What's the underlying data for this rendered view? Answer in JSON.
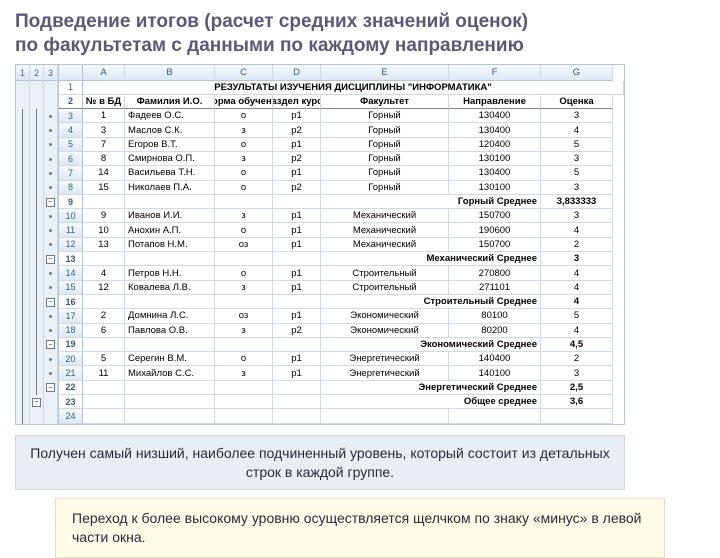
{
  "title_line1": "Подведение итогов (расчет средних значений оценок)",
  "title_line2": "по факультетам с данными по каждому направлению",
  "outline_levels": [
    "1",
    "2",
    "3"
  ],
  "col_letters": [
    "",
    "A",
    "B",
    "C",
    "D",
    "E",
    "F",
    "G"
  ],
  "table_title": "РЕЗУЛЬТАТЫ ИЗУЧЕНИЯ ДИСЦИПЛИНЫ \"ИНФОРМАТИКА\"",
  "headers": {
    "a": "№ в БД",
    "b": "Фамилия И.О.",
    "c": "Форма обучения",
    "d": "Раздел курса",
    "e": "Факультет",
    "f": "Направление",
    "g": "Оценка"
  },
  "rows": [
    {
      "n": "3",
      "a": "1",
      "b": "Фадеев О.С.",
      "c": "о",
      "d": "р1",
      "e": "Горный",
      "f": "130400",
      "g": "3"
    },
    {
      "n": "4",
      "a": "3",
      "b": "Маслов С.К.",
      "c": "з",
      "d": "р2",
      "e": "Горный",
      "f": "130400",
      "g": "4"
    },
    {
      "n": "5",
      "a": "7",
      "b": "Егоров В.Т.",
      "c": "о",
      "d": "р1",
      "e": "Горный",
      "f": "120400",
      "g": "5"
    },
    {
      "n": "6",
      "a": "8",
      "b": "Смирнова О.П.",
      "c": "з",
      "d": "р2",
      "e": "Горный",
      "f": "130100",
      "g": "3"
    },
    {
      "n": "7",
      "a": "14",
      "b": "Васильева Т.Н.",
      "c": "о",
      "d": "р1",
      "e": "Горный",
      "f": "130400",
      "g": "5"
    },
    {
      "n": "8",
      "a": "15",
      "b": "Николаев П.А.",
      "c": "о",
      "d": "р2",
      "e": "Горный",
      "f": "130100",
      "g": "3"
    }
  ],
  "sub1": {
    "label": "Горный Среднее",
    "val": "3,833333"
  },
  "rows2": [
    {
      "n": "10",
      "a": "9",
      "b": "Иванов И.И.",
      "c": "з",
      "d": "р1",
      "e": "Механический",
      "f": "150700",
      "g": "3"
    },
    {
      "n": "11",
      "a": "10",
      "b": "Анохин А.П.",
      "c": "о",
      "d": "р1",
      "e": "Механический",
      "f": "190600",
      "g": "4"
    },
    {
      "n": "12",
      "a": "13",
      "b": "Потапов Н.М.",
      "c": "оз",
      "d": "р1",
      "e": "Механический",
      "f": "150700",
      "g": "2"
    }
  ],
  "sub2": {
    "label": "Механический Среднее",
    "val": "3"
  },
  "rows3": [
    {
      "n": "14",
      "a": "4",
      "b": "Петров Н.Н.",
      "c": "о",
      "d": "р1",
      "e": "Строительный",
      "f": "270800",
      "g": "4"
    },
    {
      "n": "15",
      "a": "12",
      "b": "Ковалева Л.В.",
      "c": "з",
      "d": "р1",
      "e": "Строительный",
      "f": "271101",
      "g": "4"
    }
  ],
  "sub3": {
    "label": "Строительный Среднее",
    "val": "4"
  },
  "rows4": [
    {
      "n": "17",
      "a": "2",
      "b": "Домнина Л.С.",
      "c": "оз",
      "d": "р1",
      "e": "Экономический",
      "f": "80100",
      "g": "5"
    },
    {
      "n": "18",
      "a": "6",
      "b": "Павлова О.В.",
      "c": "з",
      "d": "р2",
      "e": "Экономический",
      "f": "80200",
      "g": "4"
    }
  ],
  "sub4": {
    "label": "Экономический Среднее",
    "val": "4,5"
  },
  "rows5": [
    {
      "n": "20",
      "a": "5",
      "b": "Серегин В.М.",
      "c": "о",
      "d": "р1",
      "e": "Энергетический",
      "f": "140400",
      "g": "2"
    },
    {
      "n": "21",
      "a": "11",
      "b": "Михайлов С.С.",
      "c": "з",
      "d": "р1",
      "e": "Энергетический",
      "f": "140100",
      "g": "3"
    }
  ],
  "sub5": {
    "label": "Энергетический Среднее",
    "val": "2,5"
  },
  "grand": {
    "label": "Общее среднее",
    "val": "3,6"
  },
  "row_numbers_special": {
    "title": "1",
    "headers": "2",
    "sub1": "9",
    "sub2": "13",
    "sub3": "16",
    "sub4": "19",
    "sub5": "22",
    "grand": "23",
    "blank": "24"
  },
  "note1": "Получен самый низший, наиболее подчиненный уровень, который состоит из детальных строк в каждой группе.",
  "note2": "Переход к более высокому уровню осуществляется щелчком по знаку «минус» в левой части окна."
}
